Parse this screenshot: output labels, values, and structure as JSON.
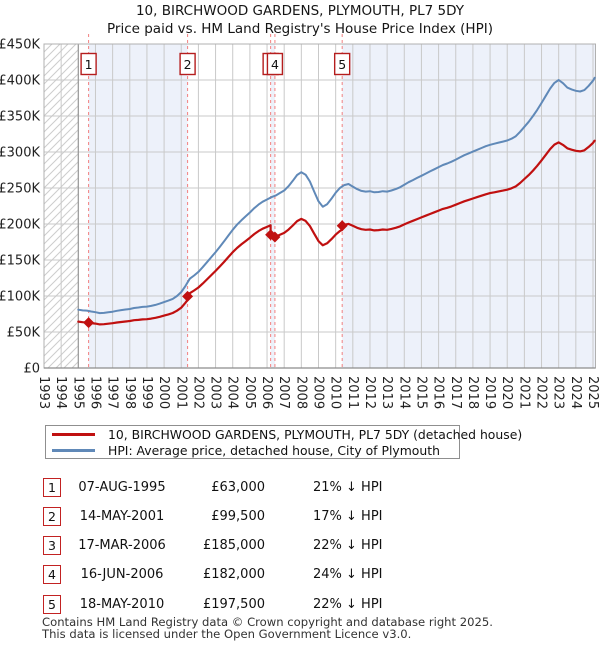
{
  "page_title": "10, BIRCHWOOD GARDENS, PLYMOUTH, PL7 5DY",
  "page_subtitle": "Price paid vs. HM Land Registry's House Price Index (HPI)",
  "legend": {
    "items": [
      {
        "label": "10, BIRCHWOOD GARDENS, PLYMOUTH, PL7 5DY (detached house)",
        "color": "#c01010"
      },
      {
        "label": "HPI: Average price, detached house, City of Plymouth",
        "color": "#6089b8"
      }
    ]
  },
  "footer": {
    "line1": "Contains HM Land Registry data © Crown copyright and database right 2025.",
    "line2": "This data is licensed under the Open Government Licence v3.0."
  },
  "chart_data": {
    "type": "line",
    "title": "10, BIRCHWOOD GARDENS, PLYMOUTH, PL7 5DY",
    "subtitle": "Price paid vs. HM Land Registry's House Price Index (HPI)",
    "xlabel": "",
    "ylabel": "",
    "xlim": [
      1993,
      2025.15
    ],
    "ylim": [
      0,
      450000
    ],
    "grid": true,
    "legend_position": "bottom",
    "x_ticks": [
      1993,
      1994,
      1995,
      1996,
      1997,
      1998,
      1999,
      2000,
      2001,
      2002,
      2003,
      2004,
      2005,
      2006,
      2007,
      2008,
      2009,
      2010,
      2011,
      2012,
      2013,
      2014,
      2015,
      2016,
      2017,
      2018,
      2019,
      2020,
      2021,
      2022,
      2023,
      2024,
      2025
    ],
    "y_ticks": [
      {
        "value": 0,
        "label": "£0"
      },
      {
        "value": 50000,
        "label": "£50K"
      },
      {
        "value": 100000,
        "label": "£100K"
      },
      {
        "value": 150000,
        "label": "£150K"
      },
      {
        "value": 200000,
        "label": "£200K"
      },
      {
        "value": 250000,
        "label": "£250K"
      },
      {
        "value": 300000,
        "label": "£300K"
      },
      {
        "value": 350000,
        "label": "£350K"
      },
      {
        "value": 400000,
        "label": "£400K"
      },
      {
        "value": 450000,
        "label": "£450K"
      }
    ],
    "no_data_hatch_until": 1995.0,
    "shaded_intervals": [
      [
        1995.6,
        2001.37
      ],
      [
        2006.21,
        2006.46
      ],
      [
        2010.38,
        2025.15
      ]
    ],
    "styles": {
      "grid_color": "#c9c9c9",
      "band_color": "#edf1fa",
      "sale_line_color": "#f28080",
      "border_color": "#b0b0b0",
      "axis_color": "#8c8c8c",
      "data_start_line_color": "#999999",
      "hatch_color": "#cccccc",
      "marker_box_border": "#b51d1d",
      "tick_label_color": "#222222"
    },
    "series": [
      {
        "name": "HPI: Average price, detached house, City of Plymouth",
        "color": "#6089b8",
        "points": [
          [
            1995.0,
            81000
          ],
          [
            1995.25,
            80000
          ],
          [
            1995.5,
            79700
          ],
          [
            1995.75,
            78500
          ],
          [
            1996.0,
            77500
          ],
          [
            1996.25,
            76200
          ],
          [
            1996.5,
            76500
          ],
          [
            1996.75,
            77400
          ],
          [
            1997.0,
            78200
          ],
          [
            1997.25,
            79400
          ],
          [
            1997.5,
            80400
          ],
          [
            1997.75,
            81200
          ],
          [
            1998.0,
            82000
          ],
          [
            1998.25,
            83400
          ],
          [
            1998.5,
            84000
          ],
          [
            1998.75,
            84800
          ],
          [
            1999.0,
            85300
          ],
          [
            1999.25,
            86200
          ],
          [
            1999.5,
            87600
          ],
          [
            1999.75,
            89500
          ],
          [
            2000.0,
            91500
          ],
          [
            2000.25,
            93600
          ],
          [
            2000.5,
            96000
          ],
          [
            2000.75,
            100000
          ],
          [
            2001.0,
            105500
          ],
          [
            2001.25,
            114000
          ],
          [
            2001.5,
            124000
          ],
          [
            2001.75,
            128500
          ],
          [
            2002.0,
            133500
          ],
          [
            2002.25,
            140000
          ],
          [
            2002.5,
            147000
          ],
          [
            2002.75,
            154000
          ],
          [
            2003.0,
            161000
          ],
          [
            2003.25,
            168500
          ],
          [
            2003.5,
            176000
          ],
          [
            2003.75,
            184000
          ],
          [
            2004.0,
            192000
          ],
          [
            2004.25,
            199000
          ],
          [
            2004.5,
            205000
          ],
          [
            2004.75,
            210500
          ],
          [
            2005.0,
            216000
          ],
          [
            2005.25,
            222000
          ],
          [
            2005.5,
            227000
          ],
          [
            2005.75,
            231000
          ],
          [
            2006.0,
            234000
          ],
          [
            2006.25,
            237200
          ],
          [
            2006.5,
            239500
          ],
          [
            2006.75,
            243000
          ],
          [
            2007.0,
            246500
          ],
          [
            2007.25,
            252500
          ],
          [
            2007.5,
            260000
          ],
          [
            2007.75,
            268000
          ],
          [
            2008.0,
            272000
          ],
          [
            2008.25,
            268500
          ],
          [
            2008.5,
            259000
          ],
          [
            2008.75,
            245000
          ],
          [
            2009.0,
            231500
          ],
          [
            2009.25,
            224000
          ],
          [
            2009.5,
            227500
          ],
          [
            2009.75,
            235000
          ],
          [
            2010.0,
            243500
          ],
          [
            2010.25,
            250000
          ],
          [
            2010.5,
            254000
          ],
          [
            2010.75,
            255500
          ],
          [
            2011.0,
            252000
          ],
          [
            2011.25,
            248500
          ],
          [
            2011.5,
            246000
          ],
          [
            2011.75,
            245000
          ],
          [
            2012.0,
            245500
          ],
          [
            2012.25,
            244000
          ],
          [
            2012.5,
            244500
          ],
          [
            2012.75,
            245500
          ],
          [
            2013.0,
            245000
          ],
          [
            2013.25,
            246500
          ],
          [
            2013.5,
            248500
          ],
          [
            2013.75,
            251000
          ],
          [
            2014.0,
            254500
          ],
          [
            2014.25,
            258000
          ],
          [
            2014.5,
            261000
          ],
          [
            2014.75,
            264000
          ],
          [
            2015.0,
            267000
          ],
          [
            2015.25,
            270000
          ],
          [
            2015.5,
            273000
          ],
          [
            2015.75,
            276000
          ],
          [
            2016.0,
            279000
          ],
          [
            2016.25,
            282000
          ],
          [
            2016.5,
            284000
          ],
          [
            2016.75,
            286500
          ],
          [
            2017.0,
            289500
          ],
          [
            2017.25,
            292500
          ],
          [
            2017.5,
            295500
          ],
          [
            2017.75,
            298000
          ],
          [
            2018.0,
            300500
          ],
          [
            2018.25,
            303000
          ],
          [
            2018.5,
            305500
          ],
          [
            2018.75,
            308000
          ],
          [
            2019.0,
            310000
          ],
          [
            2019.25,
            311500
          ],
          [
            2019.5,
            313000
          ],
          [
            2019.75,
            314500
          ],
          [
            2020.0,
            316000
          ],
          [
            2020.25,
            318500
          ],
          [
            2020.5,
            322000
          ],
          [
            2020.75,
            328000
          ],
          [
            2021.0,
            335000
          ],
          [
            2021.25,
            342000
          ],
          [
            2021.5,
            350000
          ],
          [
            2021.75,
            358500
          ],
          [
            2022.0,
            368000
          ],
          [
            2022.25,
            378000
          ],
          [
            2022.5,
            388000
          ],
          [
            2022.75,
            396000
          ],
          [
            2023.0,
            400000
          ],
          [
            2023.25,
            395500
          ],
          [
            2023.5,
            389500
          ],
          [
            2023.75,
            387000
          ],
          [
            2024.0,
            385000
          ],
          [
            2024.25,
            384000
          ],
          [
            2024.5,
            386000
          ],
          [
            2024.75,
            392000
          ],
          [
            2025.0,
            399000
          ],
          [
            2025.1,
            403000
          ]
        ]
      },
      {
        "name": "10, BIRCHWOOD GARDENS, PLYMOUTH, PL7 5DY (detached house)",
        "color": "#c01010",
        "derive": "hpi-scaled-through-sale-prices"
      }
    ],
    "sales": [
      {
        "n": "1",
        "t": 1995.6,
        "date": "07-AUG-1995",
        "price": 63000,
        "price_label": "£63,000",
        "pct_label": "21% ↓ HPI"
      },
      {
        "n": "2",
        "t": 2001.37,
        "date": "14-MAY-2001",
        "price": 99500,
        "price_label": "£99,500",
        "pct_label": "17% ↓ HPI"
      },
      {
        "n": "3",
        "t": 2006.21,
        "date": "17-MAR-2006",
        "price": 185000,
        "price_label": "£185,000",
        "pct_label": "22% ↓ HPI"
      },
      {
        "n": "4",
        "t": 2006.46,
        "date": "16-JUN-2006",
        "price": 182000,
        "price_label": "£182,000",
        "pct_label": "24% ↓ HPI"
      },
      {
        "n": "5",
        "t": 2010.38,
        "date": "18-MAY-2010",
        "price": 197500,
        "price_label": "£197,500",
        "pct_label": "22% ↓ HPI"
      }
    ]
  }
}
